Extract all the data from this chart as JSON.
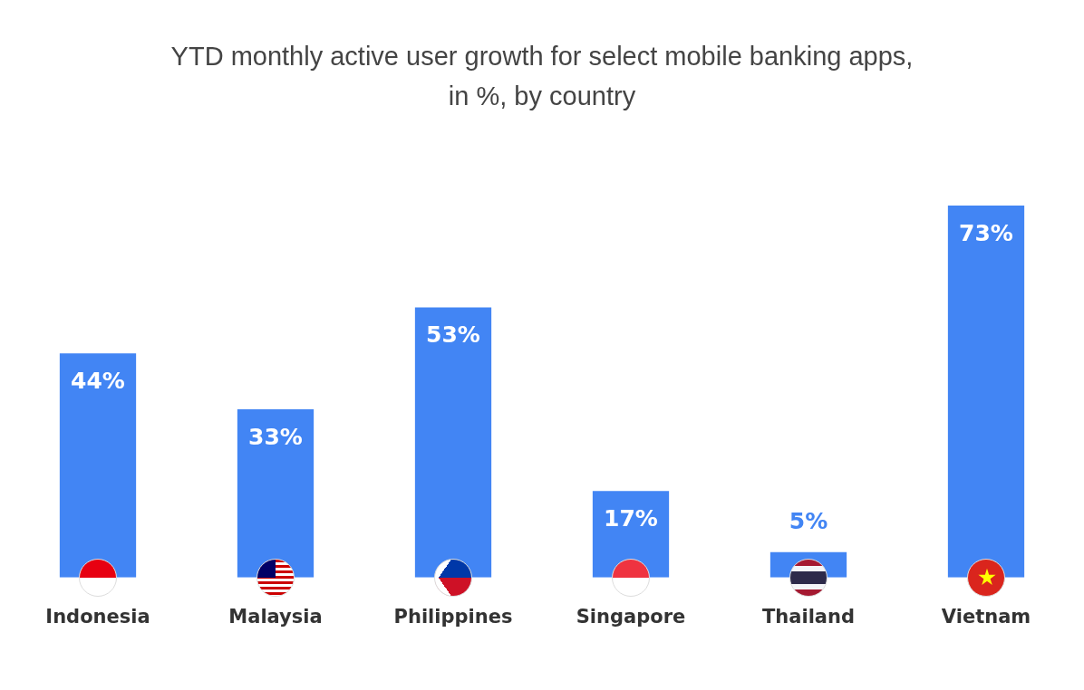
{
  "chart_data": {
    "type": "bar",
    "title": "YTD monthly active user growth for select mobile banking apps,\nin %, by country",
    "categories": [
      "Indonesia",
      "Malaysia",
      "Philippines",
      "Singapore",
      "Thailand",
      "Vietnam"
    ],
    "values": [
      44,
      33,
      53,
      17,
      5,
      73
    ],
    "value_labels": [
      "44%",
      "33%",
      "53%",
      "17%",
      "5%",
      "73%"
    ],
    "color": "#4285f4"
  }
}
